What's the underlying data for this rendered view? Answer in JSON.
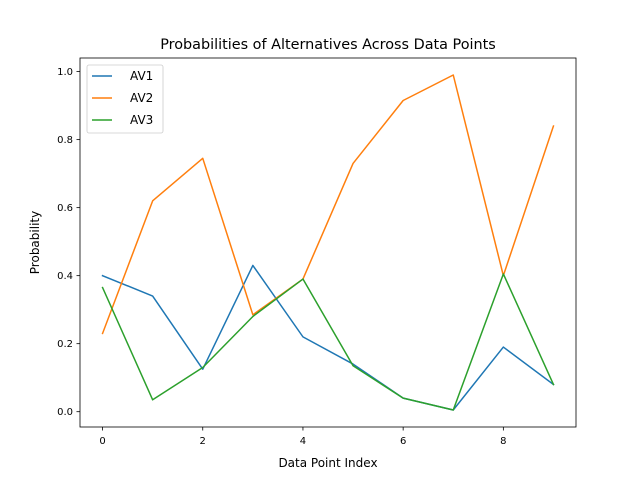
{
  "chart_data": {
    "type": "line",
    "title": "Probabilities of Alternatives Across Data Points",
    "xlabel": "Data Point Index",
    "ylabel": "Probability",
    "x": [
      0,
      1,
      2,
      3,
      4,
      5,
      6,
      7,
      8,
      9
    ],
    "xlim": [
      -0.45,
      9.45
    ],
    "ylim": [
      -0.045,
      1.04
    ],
    "xticks": [
      0,
      2,
      4,
      6,
      8
    ],
    "xtick_labels": [
      "0",
      "2",
      "4",
      "6",
      "8"
    ],
    "yticks": [
      0.0,
      0.2,
      0.4,
      0.6,
      0.8,
      1.0
    ],
    "ytick_labels": [
      "0.0",
      "0.2",
      "0.4",
      "0.6",
      "0.8",
      "1.0"
    ],
    "grid": false,
    "legend_position": "top-left",
    "series": [
      {
        "name": "AV1",
        "color": "#1f77b4",
        "values": [
          0.4,
          0.34,
          0.125,
          0.43,
          0.22,
          0.14,
          0.04,
          0.005,
          0.19,
          0.08
        ]
      },
      {
        "name": "AV2",
        "color": "#ff7f0e",
        "values": [
          0.23,
          0.62,
          0.745,
          0.285,
          0.39,
          0.73,
          0.915,
          0.99,
          0.4,
          0.84
        ]
      },
      {
        "name": "AV3",
        "color": "#2ca02c",
        "values": [
          0.365,
          0.035,
          0.13,
          0.28,
          0.39,
          0.135,
          0.04,
          0.005,
          0.405,
          0.08
        ]
      }
    ]
  }
}
